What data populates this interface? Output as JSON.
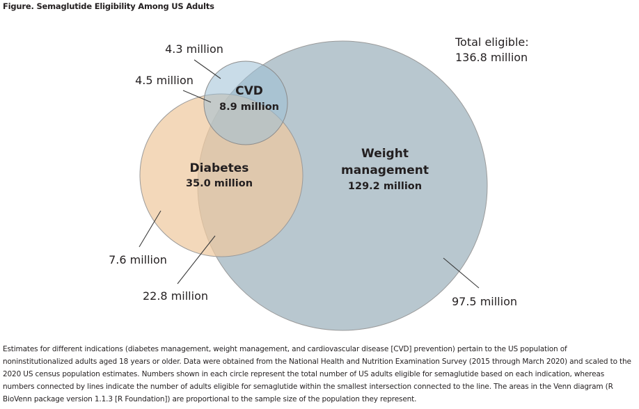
{
  "figure": {
    "title": "Figure.  Semaglutide Eligibility Among US Adults"
  },
  "colors": {
    "weight_fill": "#b8c7cf",
    "diabetes_fill": "#eec9a0",
    "cvd_fill": "#9cc0d6",
    "circle_stroke": "#9a9a9a",
    "leader_line": "#3a3a3a"
  },
  "venn": {
    "sets": {
      "cvd": {
        "name": "CVD",
        "value": "8.9 million"
      },
      "diabetes": {
        "name": "Diabetes",
        "value": "35.0 million"
      },
      "weight": {
        "name_line1": "Weight",
        "name_line2": "management",
        "value": "129.2 million"
      }
    },
    "total": {
      "line1": "Total eligible:",
      "line2": "136.8 million"
    },
    "callouts": {
      "cvd_weight": "4.3 million",
      "all_three": "4.5 million",
      "diabetes_only": "7.6 million",
      "diabetes_weight": "22.8 million",
      "weight_only": "97.5 million"
    }
  },
  "caption": "Estimates for different indications (diabetes management, weight management, and cardiovascular disease [CVD] prevention) pertain to the US population of noninstitutionalized adults aged 18 years or older. Data were obtained from the National Health and Nutrition Examination Survey (2015 through March 2020) and scaled to the 2020 US census population estimates. Numbers shown in each circle represent the total number of US adults eligible for semaglutide based on each indication, whereas numbers connected by lines indicate the number of adults eligible for semaglutide within the smallest intersection connected to the line. The areas in the Venn diagram (R BioVenn package version 1.1.3 [R Foundation]) are proportional to the sample size of the population they represent."
}
